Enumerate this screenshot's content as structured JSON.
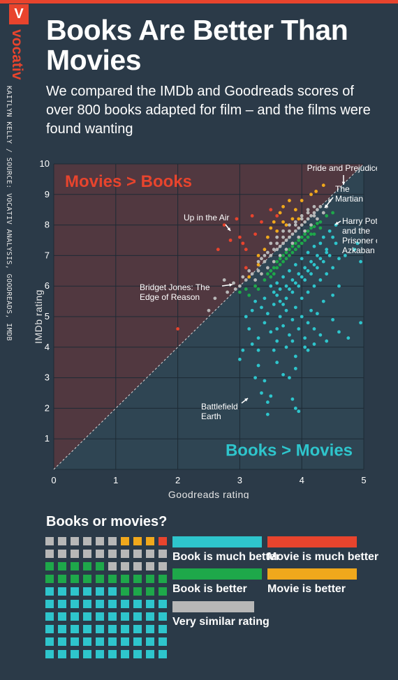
{
  "header": {
    "logo_letter": "V",
    "brand": "vocativ",
    "credit": "KAITLYN KELLY / SOURCE: VOCATIV ANALYSIS, GOODREADS, IMDB",
    "title": "Books Are Better Than Movies",
    "subtitle": "We compared the IMDb and Goodreads scores of over 800 books adapted for film – and the films were found wanting"
  },
  "colors": {
    "book_much_better": "#2ec5cc",
    "book_better": "#1ea84a",
    "similar": "#b7b7b7",
    "movie_better": "#f0a81c",
    "movie_much_better": "#e8442d",
    "movies_region": "#513840",
    "books_region": "#2f4553",
    "grid": "#1d2a34",
    "background": "#2b3a48"
  },
  "chart_data": {
    "type": "scatter",
    "xlabel": "Goodreads rating",
    "ylabel": "IMDb rating",
    "xlim": [
      0,
      5
    ],
    "ylim": [
      0,
      10
    ],
    "x_ticks": [
      "0",
      "1",
      "2",
      "3",
      "4",
      "5"
    ],
    "y_ticks": [
      "1",
      "2",
      "3",
      "4",
      "5",
      "6",
      "7",
      "8",
      "9",
      "10"
    ],
    "grid": true,
    "reference_line": "y = 2x",
    "region_labels": {
      "upper": "Movies > Books",
      "lower": "Books > Movies"
    },
    "annotations": [
      {
        "text": "Pride and Prejudice",
        "x": 4.23,
        "y": 9.1
      },
      {
        "text": "The Martian",
        "x": 4.4,
        "y": 8.6
      },
      {
        "text": "Harry Potter and the Prisoner of Azkaban",
        "x": 4.54,
        "y": 8.0
      },
      {
        "text": "Up in the Air",
        "x": 2.85,
        "y": 7.5
      },
      {
        "text": "Bridget Jones: The Edge of Reason",
        "x": 2.93,
        "y": 5.9
      },
      {
        "text": "Battlefield Earth",
        "x": 3.45,
        "y": 2.4
      }
    ],
    "series": [
      {
        "category": "movie_much_better",
        "points": [
          [
            2.0,
            4.6
          ],
          [
            2.65,
            7.2
          ],
          [
            2.85,
            7.5
          ],
          [
            2.75,
            8.0
          ],
          [
            3.05,
            7.4
          ],
          [
            3.1,
            7.2
          ],
          [
            3.0,
            7.6
          ],
          [
            2.95,
            8.2
          ],
          [
            3.2,
            8.3
          ],
          [
            3.35,
            8.1
          ],
          [
            3.25,
            7.7
          ],
          [
            3.5,
            8.5
          ],
          [
            3.6,
            8.3
          ],
          [
            3.1,
            6.6
          ]
        ]
      },
      {
        "category": "movie_better",
        "points": [
          [
            3.3,
            6.7
          ],
          [
            3.15,
            6.3
          ],
          [
            3.5,
            7.9
          ],
          [
            3.55,
            8.1
          ],
          [
            3.65,
            8.4
          ],
          [
            3.45,
            7.6
          ],
          [
            3.7,
            8.6
          ],
          [
            3.8,
            8.8
          ],
          [
            3.9,
            8.5
          ],
          [
            4.0,
            8.8
          ],
          [
            4.15,
            9.0
          ],
          [
            4.23,
            9.1
          ],
          [
            4.35,
            9.3
          ],
          [
            3.75,
            8.0
          ],
          [
            3.6,
            7.8
          ],
          [
            3.4,
            7.2
          ],
          [
            3.3,
            7.0
          ],
          [
            3.85,
            8.2
          ],
          [
            3.95,
            8.2
          ],
          [
            3.7,
            8.1
          ]
        ]
      },
      {
        "category": "similar",
        "points": [
          [
            2.5,
            5.2
          ],
          [
            2.6,
            5.6
          ],
          [
            2.75,
            6.2
          ],
          [
            2.8,
            5.8
          ],
          [
            2.93,
            5.9
          ],
          [
            3.0,
            6.0
          ],
          [
            3.1,
            6.2
          ],
          [
            3.2,
            6.4
          ],
          [
            3.3,
            6.5
          ],
          [
            3.4,
            6.8
          ],
          [
            3.5,
            7.0
          ],
          [
            3.6,
            7.2
          ],
          [
            3.7,
            7.4
          ],
          [
            3.8,
            7.6
          ],
          [
            3.9,
            7.8
          ],
          [
            4.0,
            8.0
          ],
          [
            4.1,
            8.2
          ],
          [
            4.2,
            8.4
          ],
          [
            4.3,
            8.6
          ],
          [
            4.4,
            8.6
          ],
          [
            4.45,
            8.8
          ],
          [
            3.25,
            6.2
          ],
          [
            3.35,
            6.4
          ],
          [
            3.45,
            6.6
          ],
          [
            3.55,
            6.8
          ],
          [
            3.65,
            7.0
          ],
          [
            3.75,
            7.2
          ],
          [
            3.85,
            7.4
          ],
          [
            3.95,
            7.6
          ],
          [
            4.05,
            7.8
          ],
          [
            4.15,
            8.0
          ],
          [
            4.25,
            8.2
          ],
          [
            3.5,
            7.4
          ],
          [
            3.6,
            7.6
          ],
          [
            3.7,
            7.8
          ],
          [
            3.8,
            8.0
          ],
          [
            3.9,
            8.1
          ],
          [
            4.0,
            8.3
          ],
          [
            4.1,
            8.5
          ],
          [
            4.2,
            8.6
          ],
          [
            3.4,
            7.0
          ],
          [
            3.3,
            6.8
          ],
          [
            3.15,
            6.5
          ],
          [
            3.05,
            6.3
          ],
          [
            2.9,
            6.1
          ],
          [
            3.55,
            7.2
          ],
          [
            3.65,
            7.3
          ],
          [
            3.75,
            7.5
          ],
          [
            3.85,
            7.7
          ],
          [
            3.95,
            7.9
          ],
          [
            4.05,
            8.1
          ],
          [
            4.15,
            8.3
          ],
          [
            4.25,
            8.5
          ],
          [
            4.35,
            8.4
          ],
          [
            3.45,
            7.1
          ],
          [
            3.7,
            7.6
          ],
          [
            3.9,
            8.0
          ],
          [
            4.1,
            8.4
          ],
          [
            3.35,
            6.9
          ],
          [
            3.6,
            7.4
          ],
          [
            3.8,
            7.8
          ],
          [
            4.0,
            8.2
          ],
          [
            4.2,
            8.3
          ]
        ]
      },
      {
        "category": "book_better",
        "points": [
          [
            3.0,
            5.8
          ],
          [
            3.1,
            5.9
          ],
          [
            3.15,
            5.7
          ],
          [
            3.25,
            6.0
          ],
          [
            3.3,
            5.9
          ],
          [
            3.4,
            6.2
          ],
          [
            3.45,
            6.4
          ],
          [
            3.5,
            6.5
          ],
          [
            3.55,
            6.6
          ],
          [
            3.6,
            6.8
          ],
          [
            3.65,
            6.9
          ],
          [
            3.7,
            7.0
          ],
          [
            3.75,
            7.1
          ],
          [
            3.8,
            7.2
          ],
          [
            3.85,
            7.3
          ],
          [
            3.9,
            7.4
          ],
          [
            3.95,
            7.5
          ],
          [
            4.0,
            7.6
          ],
          [
            4.05,
            7.7
          ],
          [
            4.1,
            7.8
          ],
          [
            4.15,
            7.9
          ],
          [
            4.2,
            7.95
          ],
          [
            4.25,
            8.05
          ],
          [
            4.3,
            8.1
          ],
          [
            4.4,
            8.3
          ],
          [
            4.5,
            8.4
          ],
          [
            3.5,
            6.3
          ],
          [
            3.6,
            6.6
          ],
          [
            3.7,
            6.8
          ],
          [
            3.8,
            7.0
          ],
          [
            3.9,
            7.2
          ],
          [
            4.0,
            7.4
          ],
          [
            4.1,
            7.6
          ],
          [
            4.2,
            7.7
          ],
          [
            3.55,
            6.4
          ],
          [
            3.65,
            6.7
          ],
          [
            3.75,
            6.9
          ],
          [
            3.85,
            7.1
          ],
          [
            3.95,
            7.3
          ],
          [
            4.05,
            7.5
          ],
          [
            4.15,
            7.7
          ],
          [
            4.3,
            7.9
          ]
        ]
      },
      {
        "category": "book_much_better",
        "points": [
          [
            3.5,
            2.4
          ],
          [
            3.45,
            2.2
          ],
          [
            3.35,
            2.5
          ],
          [
            3.6,
            3.5
          ],
          [
            3.7,
            3.1
          ],
          [
            3.85,
            2.3
          ],
          [
            3.9,
            2.0
          ],
          [
            3.95,
            1.9
          ],
          [
            3.9,
            3.3
          ],
          [
            3.8,
            3.0
          ],
          [
            3.0,
            3.6
          ],
          [
            3.05,
            3.9
          ],
          [
            3.3,
            3.4
          ],
          [
            3.25,
            3.0
          ],
          [
            3.4,
            2.9
          ],
          [
            3.45,
            1.8
          ],
          [
            3.6,
            4.2
          ],
          [
            3.5,
            4.5
          ],
          [
            3.4,
            4.8
          ],
          [
            3.3,
            4.3
          ],
          [
            3.15,
            4.6
          ],
          [
            3.1,
            5.0
          ],
          [
            3.2,
            5.2
          ],
          [
            3.25,
            5.5
          ],
          [
            3.35,
            5.3
          ],
          [
            3.4,
            5.6
          ],
          [
            3.45,
            5.1
          ],
          [
            3.55,
            5.4
          ],
          [
            3.6,
            5.7
          ],
          [
            3.65,
            5.0
          ],
          [
            3.7,
            4.7
          ],
          [
            3.75,
            5.2
          ],
          [
            3.8,
            4.4
          ],
          [
            3.85,
            4.9
          ],
          [
            3.9,
            5.3
          ],
          [
            3.95,
            4.6
          ],
          [
            4.0,
            5.0
          ],
          [
            4.05,
            4.3
          ],
          [
            4.1,
            4.8
          ],
          [
            4.15,
            5.2
          ],
          [
            4.2,
            4.6
          ],
          [
            4.25,
            5.1
          ],
          [
            4.3,
            4.4
          ],
          [
            4.4,
            4.2
          ],
          [
            4.5,
            4.9
          ],
          [
            4.6,
            4.5
          ],
          [
            4.75,
            4.3
          ],
          [
            4.95,
            4.8
          ],
          [
            3.5,
            6.0
          ],
          [
            3.55,
            5.8
          ],
          [
            3.6,
            6.1
          ],
          [
            3.65,
            5.9
          ],
          [
            3.7,
            6.3
          ],
          [
            3.75,
            6.0
          ],
          [
            3.8,
            6.5
          ],
          [
            3.85,
            6.2
          ],
          [
            3.9,
            6.7
          ],
          [
            3.95,
            6.4
          ],
          [
            4.0,
            6.9
          ],
          [
            4.05,
            6.6
          ],
          [
            4.1,
            7.1
          ],
          [
            4.15,
            6.8
          ],
          [
            4.2,
            7.3
          ],
          [
            4.25,
            7.0
          ],
          [
            4.3,
            7.4
          ],
          [
            4.35,
            7.6
          ],
          [
            4.4,
            7.2
          ],
          [
            4.45,
            7.8
          ],
          [
            4.5,
            7.6
          ],
          [
            4.55,
            7.4
          ],
          [
            4.6,
            6.9
          ],
          [
            4.55,
            8.0
          ],
          [
            4.7,
            7.0
          ],
          [
            4.85,
            7.2
          ],
          [
            4.95,
            6.8
          ],
          [
            4.9,
            7.4
          ],
          [
            3.65,
            5.5
          ],
          [
            3.75,
            5.6
          ],
          [
            3.85,
            5.8
          ],
          [
            3.95,
            6.0
          ],
          [
            4.05,
            6.2
          ],
          [
            4.15,
            6.4
          ],
          [
            4.25,
            6.6
          ],
          [
            4.35,
            6.8
          ],
          [
            4.45,
            7.0
          ],
          [
            3.7,
            5.4
          ],
          [
            3.8,
            5.9
          ],
          [
            3.9,
            6.1
          ],
          [
            4.0,
            6.3
          ],
          [
            4.1,
            6.5
          ],
          [
            4.2,
            6.7
          ],
          [
            4.3,
            6.9
          ],
          [
            4.4,
            7.1
          ],
          [
            4.0,
            5.6
          ],
          [
            4.1,
            5.8
          ],
          [
            4.2,
            6.0
          ],
          [
            4.3,
            6.2
          ],
          [
            4.4,
            6.4
          ],
          [
            4.5,
            6.6
          ],
          [
            3.75,
            4.0
          ],
          [
            3.9,
            3.7
          ],
          [
            4.1,
            3.9
          ],
          [
            4.2,
            4.1
          ],
          [
            3.6,
            4.6
          ],
          [
            3.3,
            3.9
          ],
          [
            3.2,
            4.1
          ],
          [
            3.55,
            3.9
          ],
          [
            4.35,
            5.5
          ],
          [
            4.5,
            5.7
          ],
          [
            4.6,
            6.0
          ],
          [
            3.85,
            4.2
          ],
          [
            4.05,
            4.0
          ]
        ]
      }
    ]
  },
  "legend": {
    "title": "Books or movies?",
    "waffle": [
      "similar",
      "similar",
      "similar",
      "similar",
      "similar",
      "similar",
      "movie_better",
      "movie_better",
      "movie_better",
      "movie_much_better",
      "similar",
      "similar",
      "similar",
      "similar",
      "similar",
      "similar",
      "similar",
      "similar",
      "similar",
      "similar",
      "book_better",
      "book_better",
      "book_better",
      "book_better",
      "book_better",
      "similar",
      "similar",
      "similar",
      "similar",
      "similar",
      "book_better",
      "book_better",
      "book_better",
      "book_better",
      "book_better",
      "book_better",
      "book_better",
      "book_better",
      "book_better",
      "book_better",
      "book_much_better",
      "book_much_better",
      "book_much_better",
      "book_much_better",
      "book_much_better",
      "book_much_better",
      "book_better",
      "book_better",
      "book_better",
      "book_better",
      "book_much_better",
      "book_much_better",
      "book_much_better",
      "book_much_better",
      "book_much_better",
      "book_much_better",
      "book_much_better",
      "book_much_better",
      "book_much_better",
      "book_much_better",
      "book_much_better",
      "book_much_better",
      "book_much_better",
      "book_much_better",
      "book_much_better",
      "book_much_better",
      "book_much_better",
      "book_much_better",
      "book_much_better",
      "book_much_better",
      "book_much_better",
      "book_much_better",
      "book_much_better",
      "book_much_better",
      "book_much_better",
      "book_much_better",
      "book_much_better",
      "book_much_better",
      "book_much_better",
      "book_much_better",
      "book_much_better",
      "book_much_better",
      "book_much_better",
      "book_much_better",
      "book_much_better",
      "book_much_better",
      "book_much_better",
      "book_much_better",
      "book_much_better",
      "book_much_better",
      "book_much_better",
      "book_much_better",
      "book_much_better",
      "book_much_better",
      "book_much_better",
      "book_much_better",
      "book_much_better",
      "book_much_better",
      "book_much_better",
      "book_much_better"
    ],
    "labels": {
      "book_much_better": "Book is much better",
      "book_better": "Book is better",
      "similar": "Very similar rating",
      "movie_much_better": "Movie is much better",
      "movie_better": "Movie is better"
    }
  }
}
